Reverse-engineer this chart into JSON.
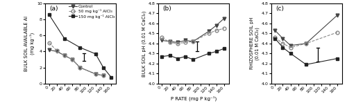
{
  "x": [
    0,
    20,
    40,
    60,
    80,
    100,
    120,
    140,
    160
  ],
  "panel_a": {
    "title": "(a)",
    "ylabel": "BULK SOIL AVAILABLE Al\n(mg kg⁻¹)",
    "control_x": [
      0,
      20,
      40,
      60,
      80,
      120,
      140
    ],
    "control_y": [
      4.2,
      4.0,
      3.5,
      3.0,
      2.0,
      1.2,
      1.0
    ],
    "al50_x": [
      0,
      20,
      40,
      60,
      80,
      120,
      140
    ],
    "al50_y": [
      5.1,
      4.1,
      3.5,
      3.0,
      2.0,
      1.2,
      1.0
    ],
    "al150_x": [
      0,
      40,
      80,
      120,
      140,
      160
    ],
    "al150_y": [
      8.6,
      5.6,
      4.5,
      3.7,
      2.0,
      0.8
    ],
    "lsd_x": 90,
    "lsd_y": 3.3,
    "lsd_half": 0.45,
    "ylim": [
      0,
      10
    ],
    "yticks": [
      0,
      2,
      4,
      6,
      8,
      10
    ]
  },
  "panel_b": {
    "title": "(b)",
    "ylabel": "BULK SOIL pH (0.01 M CaCl₂)",
    "xlabel": "P RATE (mg P kg⁻¹)",
    "control_x": [
      0,
      20,
      40,
      60,
      80,
      120,
      140,
      160
    ],
    "control_y": [
      4.43,
      4.42,
      4.41,
      4.43,
      4.42,
      4.52,
      4.58,
      4.65
    ],
    "al50_x": [
      0,
      20,
      40,
      60,
      80,
      120,
      140,
      160
    ],
    "al50_y": [
      4.46,
      4.41,
      4.4,
      4.41,
      4.42,
      4.5,
      4.53,
      4.55
    ],
    "al150_x": [
      0,
      20,
      40,
      60,
      80,
      120,
      140,
      160
    ],
    "al150_y": [
      4.27,
      4.28,
      4.25,
      4.27,
      4.24,
      4.3,
      4.32,
      4.35
    ],
    "lsd_x": 90,
    "lsd_y": 4.37,
    "lsd_half": 0.05,
    "ylim": [
      4.0,
      4.8
    ],
    "yticks": [
      4.0,
      4.1,
      4.2,
      4.3,
      4.4,
      4.5,
      4.6,
      4.7,
      4.8
    ]
  },
  "panel_c": {
    "title": "(c)",
    "ylabel": "RHIZOSPHERE SOIL pH\n(0.01 M CaCl₂)",
    "control_x": [
      0,
      20,
      40,
      80,
      160
    ],
    "control_y": [
      4.53,
      4.45,
      4.38,
      4.4,
      4.68
    ],
    "al50_x": [
      0,
      20,
      40,
      80,
      160
    ],
    "al50_y": [
      4.46,
      4.4,
      4.36,
      4.4,
      4.51
    ],
    "al150_x": [
      0,
      20,
      40,
      80,
      160
    ],
    "al150_y": [
      4.45,
      4.36,
      4.3,
      4.19,
      4.25
    ],
    "lsd_x": 110,
    "lsd_y": 4.29,
    "lsd_half": 0.07,
    "ylim": [
      4.0,
      4.8
    ],
    "yticks": [
      4.0,
      4.1,
      4.2,
      4.3,
      4.4,
      4.5,
      4.6,
      4.7,
      4.8
    ]
  },
  "legend_labels": [
    "Control",
    "50 mg kg⁻¹ AlCl₃",
    "150 mg kg⁻¹ AlCl₃"
  ],
  "xticks": [
    0,
    20,
    40,
    60,
    80,
    100,
    120,
    140,
    160
  ]
}
